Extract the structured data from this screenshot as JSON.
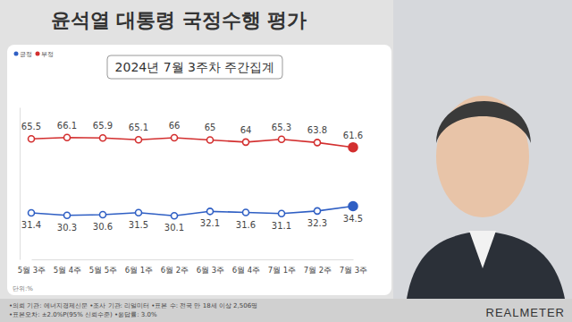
{
  "chart_data": {
    "type": "line",
    "title": "윤석열 대통령 국정수행 평가",
    "subtitle": "2024년 7월 3주차 주간집계",
    "categories": [
      "5월 3주",
      "5월 4주",
      "5월 5주",
      "6월 1주",
      "6월 2주",
      "6월 3주",
      "6월 4주",
      "7월 1주",
      "7월 2주",
      "7월 3주"
    ],
    "series": [
      {
        "name": "긍정",
        "color": "#2f5fc4",
        "values": [
          31.4,
          30.3,
          30.6,
          31.5,
          30.1,
          32.1,
          31.6,
          31.1,
          32.3,
          34.5
        ]
      },
      {
        "name": "부정",
        "color": "#d32f2f",
        "values": [
          65.5,
          66.1,
          65.9,
          65.1,
          66.0,
          65.0,
          64.0,
          65.3,
          63.8,
          61.6
        ]
      }
    ],
    "ylim": [
      10,
      80
    ],
    "marker": "circle",
    "data_labels": true,
    "tick_labels": "x",
    "legend": "upper left",
    "unit": "단위:%",
    "source": [
      "•의뢰 기관: 에너지경제신문 •조사 기관: 리얼미터 •표본 수: 전국 만 18세 이상 2,506명",
      "•표본오차: ±2.0%P(95% 신뢰수준) •응답률: 3.0%"
    ],
    "logo": "REALMETER"
  }
}
